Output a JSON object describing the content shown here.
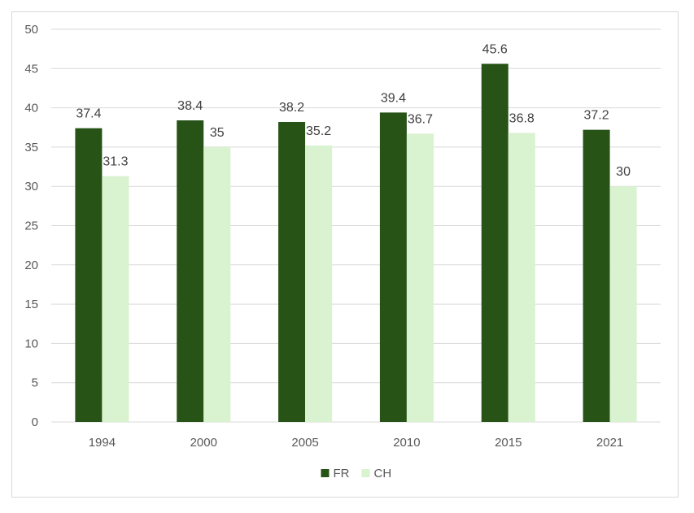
{
  "chart_data": {
    "type": "bar",
    "categories": [
      "1994",
      "2000",
      "2005",
      "2010",
      "2015",
      "2021"
    ],
    "series": [
      {
        "name": "FR",
        "values": [
          37.4,
          38.4,
          38.2,
          39.4,
          45.6,
          37.2
        ],
        "color": "#275317"
      },
      {
        "name": "CH",
        "values": [
          31.3,
          35,
          35.2,
          36.7,
          36.8,
          30
        ],
        "color": "#d9f2d0"
      }
    ],
    "ylim": [
      0,
      50
    ],
    "yticks": [
      0,
      5,
      10,
      15,
      20,
      25,
      30,
      35,
      40,
      45,
      50
    ],
    "grid": true,
    "legend_position": "bottom",
    "data_labels": true
  },
  "colors": {
    "gridline": "#d9d9d9",
    "axis_text": "#595959",
    "label_text": "#404040",
    "frame_border": "#d9d9d9"
  }
}
